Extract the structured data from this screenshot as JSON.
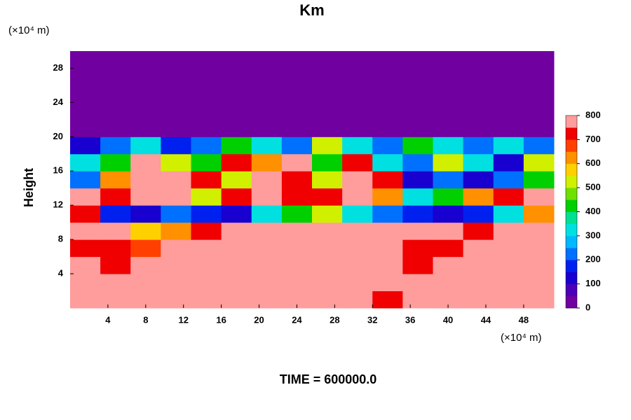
{
  "chart_data": {
    "type": "contour",
    "title": "Km",
    "x_unit": "(×10⁴ m)",
    "y_unit": "(×10⁴ m)",
    "ylabel": "Height",
    "footer": "TIME = 600000.0",
    "xlim": [
      0,
      51.2
    ],
    "ylim": [
      0,
      30
    ],
    "xticks": [
      4,
      8,
      12,
      16,
      20,
      24,
      28,
      32,
      36,
      40,
      44,
      48
    ],
    "yticks": [
      4,
      8,
      12,
      16,
      20,
      24,
      28
    ],
    "clim": [
      0,
      800
    ],
    "cticks": [
      0,
      100,
      200,
      300,
      400,
      500,
      600,
      700,
      800
    ],
    "colorscale": [
      "#7000a0",
      "#4a00b8",
      "#1800d0",
      "#0020f0",
      "#0070ff",
      "#00b8ff",
      "#00e0e0",
      "#00e090",
      "#00d000",
      "#70e000",
      "#d0f000",
      "#ffd000",
      "#ff9000",
      "#ff4000",
      "#f00000",
      "#ff9c9c"
    ],
    "z": [
      [
        800,
        750,
        800,
        800,
        800,
        800,
        800,
        800,
        800,
        800,
        700,
        800,
        800,
        800,
        800,
        800
      ],
      [
        800,
        800,
        800,
        800,
        800,
        800,
        800,
        800,
        800,
        800,
        800,
        800,
        750,
        800,
        800,
        800
      ],
      [
        750,
        700,
        800,
        800,
        800,
        800,
        800,
        800,
        800,
        800,
        800,
        700,
        800,
        800,
        800,
        800
      ],
      [
        700,
        700,
        650,
        800,
        800,
        800,
        800,
        800,
        800,
        800,
        800,
        700,
        700,
        750,
        800,
        800
      ],
      [
        800,
        800,
        550,
        600,
        700,
        800,
        800,
        800,
        800,
        800,
        800,
        800,
        800,
        700,
        800,
        800
      ],
      [
        700,
        150,
        100,
        200,
        150,
        100,
        300,
        400,
        500,
        300,
        200,
        150,
        100,
        150,
        300,
        600
      ],
      [
        800,
        700,
        800,
        800,
        500,
        700,
        800,
        700,
        700,
        800,
        600,
        300,
        400,
        600,
        700,
        800
      ],
      [
        200,
        600,
        800,
        800,
        700,
        500,
        800,
        700,
        500,
        800,
        700,
        100,
        200,
        100,
        200,
        400
      ],
      [
        300,
        400,
        800,
        500,
        400,
        700,
        600,
        800,
        400,
        700,
        300,
        200,
        500,
        300,
        100,
        500
      ],
      [
        100,
        200,
        300,
        150,
        200,
        400,
        300,
        200,
        500,
        300,
        200,
        400,
        300,
        200,
        300,
        200
      ],
      [
        0,
        0,
        0,
        0,
        0,
        0,
        0,
        0,
        0,
        0,
        0,
        0,
        0,
        0,
        0,
        0
      ],
      [
        0,
        0,
        0,
        0,
        0,
        0,
        0,
        0,
        0,
        0,
        0,
        0,
        0,
        0,
        0,
        0
      ],
      [
        0,
        0,
        0,
        0,
        0,
        0,
        0,
        0,
        0,
        0,
        0,
        0,
        0,
        0,
        0,
        0
      ],
      [
        0,
        0,
        0,
        0,
        0,
        0,
        0,
        0,
        0,
        0,
        0,
        0,
        0,
        0,
        0,
        0
      ],
      [
        0,
        0,
        0,
        0,
        0,
        0,
        0,
        0,
        0,
        0,
        0,
        0,
        0,
        0,
        0,
        0
      ]
    ]
  }
}
